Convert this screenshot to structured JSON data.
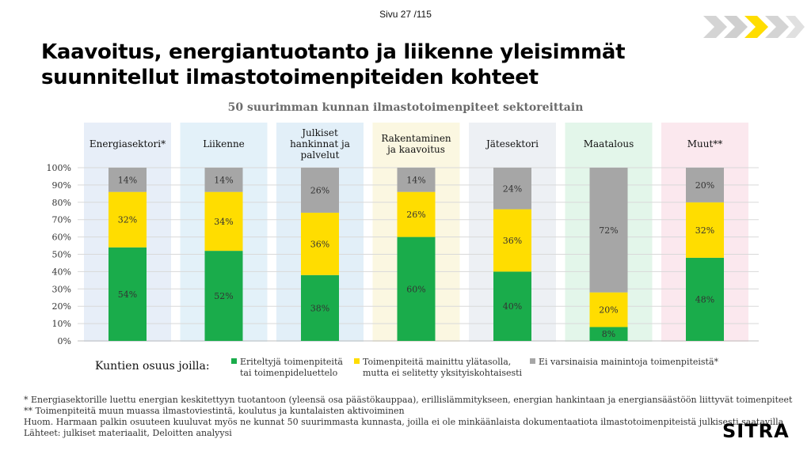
{
  "page": {
    "page_number": "Sivu 27 /115",
    "title_line1": "Kaavoitus, energiantuotanto ja liikenne yleisimmät",
    "title_line2": "suunnitellut ilmastotoimenpiteiden kohteet",
    "logo": "SITRA"
  },
  "chart_data": {
    "type": "bar",
    "stacked": true,
    "title": "50 suurimman kunnan ilmastotoimenpiteet sektoreittain",
    "categories": [
      "Energiasektori*",
      "Liikenne",
      "Julkiset hankinnat ja palvelut",
      "Rakentaminen ja kaavoitus",
      "Jätesektori",
      "Maatalous",
      "Muut**"
    ],
    "category_lines": [
      [
        "Energiasektori*"
      ],
      [
        "Liikenne"
      ],
      [
        "Julkiset",
        "hankinnat ja",
        "palvelut"
      ],
      [
        "Rakentaminen",
        "ja kaavoitus"
      ],
      [
        "Jätesektori"
      ],
      [
        "Maatalous"
      ],
      [
        "Muut**"
      ]
    ],
    "category_colors": [
      "#e7eef8",
      "#e3f1f9",
      "#e2eff8",
      "#fbf7e1",
      "#edf0f4",
      "#e3f6ea",
      "#fbe8ee"
    ],
    "series": [
      {
        "name": "Eriteltyjä toimenpiteitä tai toimenpideluettelo",
        "color": "#1aac4b",
        "values": [
          54,
          52,
          38,
          60,
          40,
          8,
          48
        ]
      },
      {
        "name": "Toimenpiteitä mainittu ylätasolla, mutta ei selitetty yksityiskohtaisesti",
        "color": "#ffdd00",
        "values": [
          32,
          34,
          36,
          26,
          36,
          20,
          32
        ]
      },
      {
        "name": "Ei varsinaisia mainintoja toimenpiteistä*",
        "color": "#a6a6a6",
        "values": [
          14,
          14,
          26,
          14,
          24,
          72,
          20
        ]
      }
    ],
    "value_labels": [
      [
        "54%",
        "32%",
        "14%"
      ],
      [
        "52%",
        "34%",
        "14%"
      ],
      [
        "38%",
        "36%",
        "26%"
      ],
      [
        "60%",
        "26%",
        "14%"
      ],
      [
        "40%",
        "36%",
        "24%"
      ],
      [
        "8%",
        "20%",
        "72%"
      ],
      [
        "48%",
        "32%",
        "20%"
      ]
    ],
    "yticks": [
      "0%",
      "10%",
      "20%",
      "30%",
      "40%",
      "50%",
      "60%",
      "70%",
      "80%",
      "90%",
      "100%"
    ],
    "ylim": [
      0,
      100
    ],
    "grid": true,
    "legend_title": "Kuntien osuus joilla:",
    "legend_lines": [
      [
        "Eriteltyjä toimenpiteitä",
        "tai toimenpideluettelo"
      ],
      [
        "Toimenpiteitä mainittu ylätasolla,",
        "mutta ei selitetty yksityiskohtaisesti"
      ],
      [
        "Ei varsinaisia mainintoja toimenpiteistä*"
      ]
    ],
    "legend_placement": "bottom"
  },
  "notes": [
    "*    Energiasektorille luettu energian keskitettyyn tuotantoon (yleensä osa päästökauppaa), erillislämmitykseen, energian hankintaan ja energiansäästöön liittyvät toimenpiteet",
    "**  Toimenpiteitä muun muassa ilmastoviestintä, koulutus ja kuntalaisten aktivoiminen",
    "Huom. Harmaan palkin osuuteen kuuluvat myös ne kunnat 50 suurimmasta kunnasta, joilla ei ole minkäänlaista dokumentaatiota ilmastotoimenpiteistä julkisesti saatavilla",
    "Lähteet: julkiset materiaalit, Deloitten analyysi"
  ]
}
